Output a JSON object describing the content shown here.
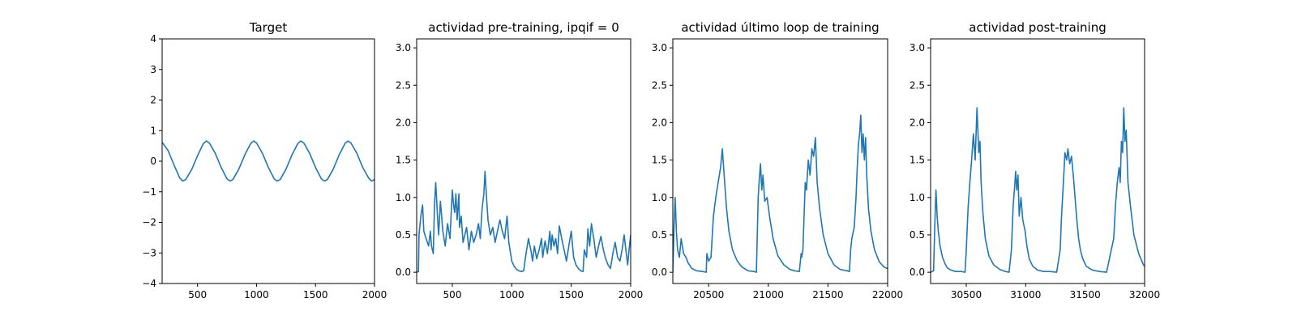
{
  "colors": {
    "series": "#1f77b4",
    "axes": "#000000",
    "background": "#ffffff"
  },
  "chart_data": [
    {
      "type": "line",
      "title": "Target",
      "xlim": [
        200,
        2000
      ],
      "ylim": [
        -4,
        4
      ],
      "xticks": [
        500,
        1000,
        1500,
        2000
      ],
      "yticks": [
        -4,
        -3,
        -2,
        -1,
        0,
        1,
        2,
        3,
        4
      ],
      "ytick_labels": [
        "−4",
        "−3",
        "−2",
        "−1",
        "0",
        "1",
        "2",
        "3",
        "4"
      ],
      "series": [
        {
          "x": [
            200,
            250,
            300,
            350,
            375,
            400,
            450,
            500,
            550,
            575,
            600,
            650,
            700,
            750,
            775,
            800,
            850,
            900,
            950,
            975,
            1000,
            1050,
            1100,
            1150,
            1175,
            1200,
            1250,
            1300,
            1350,
            1375,
            1400,
            1450,
            1500,
            1550,
            1575,
            1600,
            1650,
            1700,
            1750,
            1775,
            1800,
            1850,
            1900,
            1950,
            1975,
            2000
          ],
          "y": [
            0.62,
            0.35,
            -0.12,
            -0.55,
            -0.65,
            -0.6,
            -0.28,
            0.18,
            0.58,
            0.66,
            0.6,
            0.26,
            -0.2,
            -0.58,
            -0.65,
            -0.6,
            -0.26,
            0.2,
            0.58,
            0.66,
            0.6,
            0.26,
            -0.2,
            -0.58,
            -0.65,
            -0.6,
            -0.26,
            0.2,
            0.58,
            0.66,
            0.6,
            0.26,
            -0.2,
            -0.58,
            -0.65,
            -0.6,
            -0.26,
            0.2,
            0.58,
            0.66,
            0.6,
            0.26,
            -0.2,
            -0.55,
            -0.65,
            -0.6
          ]
        }
      ]
    },
    {
      "type": "line",
      "title": "actividad pre-training, ipqif = 0",
      "xlim": [
        200,
        2000
      ],
      "ylim": [
        -0.15,
        3.12
      ],
      "xticks": [
        500,
        1000,
        1500,
        2000
      ],
      "yticks": [
        0.0,
        0.5,
        1.0,
        1.5,
        2.0,
        2.5,
        3.0
      ],
      "ytick_labels": [
        "0.0",
        "0.5",
        "1.0",
        "1.5",
        "2.0",
        "2.5",
        "3.0"
      ],
      "series": [
        {
          "x": [
            200,
            215,
            220,
            235,
            250,
            260,
            280,
            300,
            315,
            325,
            340,
            350,
            360,
            375,
            385,
            400,
            420,
            440,
            460,
            480,
            500,
            510,
            520,
            530,
            540,
            555,
            560,
            575,
            590,
            605,
            620,
            640,
            660,
            680,
            700,
            720,
            735,
            750,
            765,
            775,
            790,
            800,
            820,
            840,
            860,
            880,
            900,
            920,
            940,
            960,
            975,
            990,
            1000,
            1020,
            1040,
            1060,
            1080,
            1100,
            1120,
            1140,
            1160,
            1175,
            1190,
            1210,
            1230,
            1250,
            1260,
            1280,
            1300,
            1320,
            1330,
            1340,
            1355,
            1370,
            1385,
            1400,
            1420,
            1440,
            1460,
            1480,
            1500,
            1520,
            1540,
            1560,
            1580,
            1600,
            1610,
            1630,
            1640,
            1655,
            1670,
            1690,
            1710,
            1730,
            1750,
            1770,
            1790,
            1810,
            1830,
            1850,
            1870,
            1890,
            1910,
            1930,
            1945,
            1960,
            1975,
            1990,
            2000
          ],
          "y": [
            0.0,
            0.01,
            0.5,
            0.75,
            0.9,
            0.55,
            0.45,
            0.35,
            0.55,
            0.35,
            0.25,
            0.9,
            1.2,
            0.75,
            0.5,
            0.95,
            0.55,
            0.35,
            0.65,
            0.45,
            1.1,
            0.9,
            0.8,
            1.05,
            0.7,
            1.05,
            0.6,
            0.75,
            0.4,
            0.5,
            0.6,
            0.3,
            0.55,
            0.4,
            0.5,
            0.65,
            0.45,
            0.85,
            1.05,
            1.35,
            0.95,
            0.7,
            0.5,
            0.6,
            0.4,
            0.55,
            0.7,
            0.55,
            0.45,
            0.75,
            0.4,
            0.25,
            0.15,
            0.08,
            0.04,
            0.02,
            0.01,
            0.02,
            0.25,
            0.45,
            0.3,
            0.15,
            0.35,
            0.18,
            0.3,
            0.45,
            0.2,
            0.42,
            0.25,
            0.55,
            0.3,
            0.5,
            0.35,
            0.45,
            0.25,
            0.62,
            0.45,
            0.3,
            0.15,
            0.35,
            0.55,
            0.2,
            0.1,
            0.05,
            0.02,
            0.01,
            0.3,
            0.2,
            0.58,
            0.35,
            0.65,
            0.45,
            0.2,
            0.35,
            0.48,
            0.3,
            0.18,
            0.1,
            0.05,
            0.25,
            0.4,
            0.2,
            0.15,
            0.32,
            0.5,
            0.3,
            0.1,
            0.35,
            0.5
          ]
        }
      ]
    },
    {
      "type": "line",
      "title": "actividad último loop de training",
      "xlim": [
        20200,
        22000
      ],
      "ylim": [
        -0.15,
        3.12
      ],
      "xticks": [
        20500,
        21000,
        21500,
        22000
      ],
      "yticks": [
        0.0,
        0.5,
        1.0,
        1.5,
        2.0,
        2.5,
        3.0
      ],
      "ytick_labels": [
        "0.0",
        "0.5",
        "1.0",
        "1.5",
        "2.0",
        "2.5",
        "3.0"
      ],
      "series": [
        {
          "x": [
            20200,
            20210,
            20220,
            20230,
            20240,
            20255,
            20270,
            20290,
            20310,
            20330,
            20360,
            20400,
            20450,
            20480,
            20485,
            20500,
            20520,
            20540,
            20560,
            20580,
            20600,
            20615,
            20630,
            20650,
            20670,
            20700,
            20740,
            20780,
            20830,
            20880,
            20900,
            20915,
            20925,
            20935,
            20945,
            20955,
            20970,
            20990,
            21010,
            21040,
            21080,
            21130,
            21180,
            21220,
            21260,
            21275,
            21280,
            21290,
            21300,
            21310,
            21320,
            21335,
            21350,
            21365,
            21380,
            21395,
            21410,
            21430,
            21460,
            21500,
            21550,
            21600,
            21660,
            21680,
            21690,
            21700,
            21720,
            21735,
            21745,
            21755,
            21765,
            21775,
            21785,
            21795,
            21805,
            21815,
            21825,
            21840,
            21860,
            21890,
            21930,
            21970,
            22000
          ],
          "y": [
            0.0,
            0.6,
            1.0,
            0.55,
            0.3,
            0.2,
            0.45,
            0.25,
            0.2,
            0.12,
            0.05,
            0.02,
            0.01,
            0.0,
            0.25,
            0.15,
            0.2,
            0.75,
            1.0,
            1.2,
            1.4,
            1.65,
            1.3,
            0.85,
            0.55,
            0.3,
            0.15,
            0.07,
            0.02,
            0.01,
            0.0,
            1.0,
            1.25,
            1.45,
            1.1,
            1.3,
            0.95,
            1.0,
            0.75,
            0.45,
            0.22,
            0.1,
            0.04,
            0.02,
            0.01,
            0.25,
            0.2,
            0.3,
            0.75,
            1.2,
            1.1,
            1.5,
            1.3,
            1.65,
            1.55,
            1.8,
            1.2,
            0.85,
            0.5,
            0.25,
            0.1,
            0.04,
            0.02,
            0.01,
            0.3,
            0.45,
            0.6,
            1.0,
            1.4,
            1.7,
            1.85,
            2.1,
            1.6,
            1.85,
            1.5,
            1.8,
            1.3,
            0.85,
            0.55,
            0.3,
            0.14,
            0.07,
            0.05
          ]
        }
      ]
    },
    {
      "type": "line",
      "title": "actividad post-training",
      "xlim": [
        30200,
        32000
      ],
      "ylim": [
        -0.15,
        3.12
      ],
      "xticks": [
        30500,
        31000,
        31500,
        32000
      ],
      "yticks": [
        0.0,
        0.5,
        1.0,
        1.5,
        2.0,
        2.5,
        3.0
      ],
      "ytick_labels": [
        "0.0",
        "0.5",
        "1.0",
        "1.5",
        "2.0",
        "2.5",
        "3.0"
      ],
      "series": [
        {
          "x": [
            30200,
            30225,
            30235,
            30245,
            30255,
            30265,
            30280,
            30300,
            30320,
            30340,
            30370,
            30410,
            30460,
            30490,
            30500,
            30515,
            30530,
            30545,
            30560,
            30575,
            30590,
            30605,
            30615,
            30625,
            30640,
            30660,
            30690,
            30730,
            30780,
            30830,
            30860,
            30880,
            30895,
            30905,
            30915,
            30925,
            30935,
            30945,
            30960,
            30975,
            30995,
            31010,
            31030,
            31060,
            31100,
            31150,
            31200,
            31260,
            31290,
            31300,
            31310,
            31320,
            31330,
            31345,
            31355,
            31370,
            31385,
            31400,
            31415,
            31430,
            31445,
            31460,
            31480,
            31510,
            31560,
            31620,
            31680,
            31720,
            31740,
            31755,
            31770,
            31785,
            31795,
            31805,
            31815,
            31825,
            31835,
            31845,
            31860,
            31880,
            31910,
            31950,
            31990,
            32000
          ],
          "y": [
            0.0,
            0.02,
            0.6,
            1.1,
            0.75,
            0.55,
            0.35,
            0.2,
            0.12,
            0.06,
            0.03,
            0.01,
            0.01,
            0.0,
            0.3,
            0.85,
            1.2,
            1.5,
            1.85,
            1.5,
            2.2,
            1.6,
            1.75,
            1.2,
            0.8,
            0.45,
            0.22,
            0.1,
            0.04,
            0.01,
            0.0,
            0.3,
            0.9,
            1.1,
            1.35,
            1.1,
            1.3,
            0.75,
            1.0,
            0.7,
            0.55,
            0.35,
            0.18,
            0.08,
            0.03,
            0.01,
            0.01,
            0.0,
            0.3,
            0.7,
            1.0,
            1.3,
            1.6,
            1.5,
            1.65,
            1.45,
            1.55,
            1.3,
            1.0,
            0.7,
            0.45,
            0.3,
            0.18,
            0.08,
            0.03,
            0.01,
            0.0,
            0.3,
            0.45,
            0.9,
            1.2,
            1.4,
            1.2,
            1.75,
            1.6,
            2.2,
            1.75,
            1.9,
            1.2,
            0.9,
            0.5,
            0.25,
            0.1,
            0.08
          ]
        }
      ]
    }
  ]
}
